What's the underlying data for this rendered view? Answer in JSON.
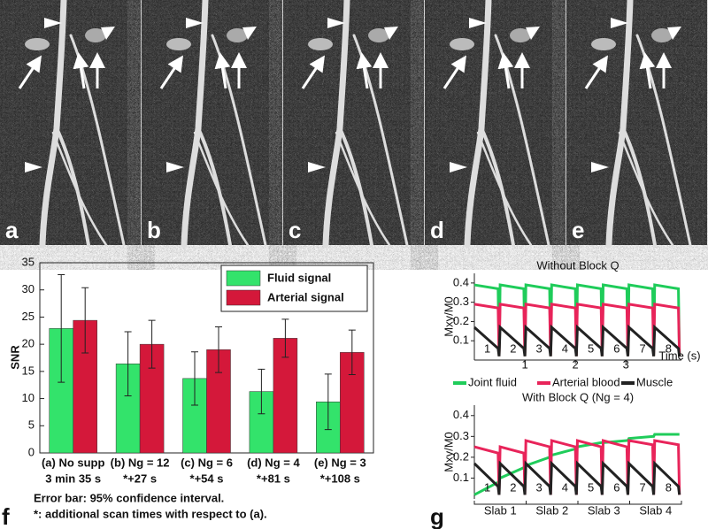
{
  "panels": {
    "image_labels": [
      "a",
      "b",
      "c",
      "d",
      "e"
    ],
    "chart_labels": [
      "f",
      "g"
    ]
  },
  "chart_data": [
    {
      "type": "bar",
      "ylabel": "SNR",
      "categories": [
        "(a) No supp",
        "(b) Ng = 12",
        "(c) Ng = 6",
        "(d) Ng = 4",
        "(e) Ng = 3"
      ],
      "category_sublabels": [
        "3 min 35 s",
        "*+27 s",
        "*+54 s",
        "*+81 s",
        "*+108 s"
      ],
      "series": [
        {
          "name": "Fluid signal",
          "color": "#33e36b",
          "values": [
            22.9,
            16.4,
            13.7,
            11.3,
            9.4
          ],
          "errors": [
            9.9,
            5.9,
            4.9,
            4.1,
            5.1
          ]
        },
        {
          "name": "Arterial signal",
          "color": "#d4183a",
          "values": [
            24.4,
            20.0,
            19.0,
            21.1,
            18.5
          ],
          "errors": [
            6.0,
            4.4,
            4.2,
            3.5,
            4.1
          ]
        }
      ],
      "ylim": [
        0,
        35
      ],
      "yticks": [
        0,
        5,
        10,
        15,
        20,
        25,
        30,
        35
      ],
      "legend": "upper right",
      "notes": [
        "Error bar: 95% confidence interval.",
        "*: additional scan times with respect to (a)."
      ]
    },
    {
      "type": "line",
      "title": "Without Block Q",
      "ylabel": "Mxy/M0",
      "xlabel": "Time (s)",
      "x": [
        0,
        0.47,
        0.49,
        0.51,
        0.98,
        1.0,
        1.02,
        1.49,
        1.51,
        1.53,
        2.0,
        2.02,
        2.04,
        2.51,
        2.53,
        2.55,
        3.02,
        3.04,
        3.06,
        3.53,
        3.55,
        3.57,
        4.04,
        4.06
      ],
      "series": [
        {
          "name": "Joint fluid",
          "color": "#1fcc5a",
          "values": [
            0.39,
            0.37,
            0.02,
            0.39,
            0.37,
            0.02,
            0.39,
            0.37,
            0.02,
            0.39,
            0.37,
            0.02,
            0.39,
            0.37,
            0.02,
            0.39,
            0.37,
            0.02,
            0.39,
            0.37,
            0.02,
            0.39,
            0.37,
            0.02
          ]
        },
        {
          "name": "Arterial blood",
          "color": "#e8245a",
          "values": [
            0.29,
            0.27,
            0.02,
            0.29,
            0.27,
            0.02,
            0.29,
            0.27,
            0.02,
            0.29,
            0.27,
            0.02,
            0.29,
            0.27,
            0.02,
            0.29,
            0.27,
            0.02,
            0.29,
            0.27,
            0.02,
            0.29,
            0.27,
            0.02
          ]
        },
        {
          "name": "Muscle",
          "color": "#222222",
          "values": [
            0.17,
            0.06,
            0.02,
            0.17,
            0.06,
            0.02,
            0.17,
            0.06,
            0.02,
            0.17,
            0.06,
            0.02,
            0.17,
            0.06,
            0.02,
            0.17,
            0.06,
            0.02,
            0.17,
            0.06,
            0.02,
            0.17,
            0.06,
            0.02
          ]
        }
      ],
      "segment_labels": [
        "1",
        "2",
        "3",
        "4",
        "5",
        "6",
        "7",
        "8"
      ],
      "xlim": [
        0,
        4.1
      ],
      "xticks": [
        1,
        2,
        3
      ],
      "ylim": [
        0,
        0.45
      ],
      "yticks": [
        0.1,
        0.2,
        0.3,
        0.4
      ]
    },
    {
      "type": "line",
      "title": "With Block Q (Ng = 4)",
      "ylabel": "Mxy/M0",
      "x": [
        0,
        0.47,
        0.49,
        0.51,
        0.98,
        1.0,
        1.02,
        1.49,
        1.51,
        1.53,
        2.0,
        2.02,
        2.04,
        2.51,
        2.53,
        2.55,
        3.02,
        3.04,
        3.06,
        3.53,
        3.55,
        3.57,
        4.04,
        4.06
      ],
      "series": [
        {
          "color": "#1fcc5a",
          "values": [
            0.02,
            0.08,
            0.09,
            0.1,
            0.15,
            0.15,
            0.16,
            0.2,
            0.2,
            0.21,
            0.24,
            0.24,
            0.25,
            0.27,
            0.27,
            0.27,
            0.28,
            0.28,
            0.29,
            0.3,
            0.3,
            0.31,
            0.31,
            0.31
          ]
        },
        {
          "color": "#e8245a",
          "values": [
            0.25,
            0.22,
            0.02,
            0.25,
            0.22,
            0.02,
            0.28,
            0.25,
            0.02,
            0.28,
            0.25,
            0.02,
            0.28,
            0.25,
            0.02,
            0.28,
            0.25,
            0.02,
            0.28,
            0.26,
            0.02,
            0.28,
            0.26,
            0.02
          ]
        },
        {
          "color": "#222222",
          "values": [
            0.17,
            0.06,
            0.02,
            0.17,
            0.06,
            0.02,
            0.17,
            0.06,
            0.02,
            0.17,
            0.06,
            0.02,
            0.17,
            0.06,
            0.02,
            0.17,
            0.06,
            0.02,
            0.17,
            0.06,
            0.02,
            0.17,
            0.06,
            0.02
          ]
        }
      ],
      "segment_labels": [
        "1",
        "2",
        "3",
        "4",
        "5",
        "6",
        "7",
        "8"
      ],
      "slabs": [
        "Slab 1",
        "Slab 2",
        "Slab 3",
        "Slab 4"
      ],
      "xlim": [
        0,
        4.1
      ],
      "ylim": [
        0,
        0.45
      ],
      "yticks": [
        0.1,
        0.2,
        0.3,
        0.4
      ]
    }
  ]
}
